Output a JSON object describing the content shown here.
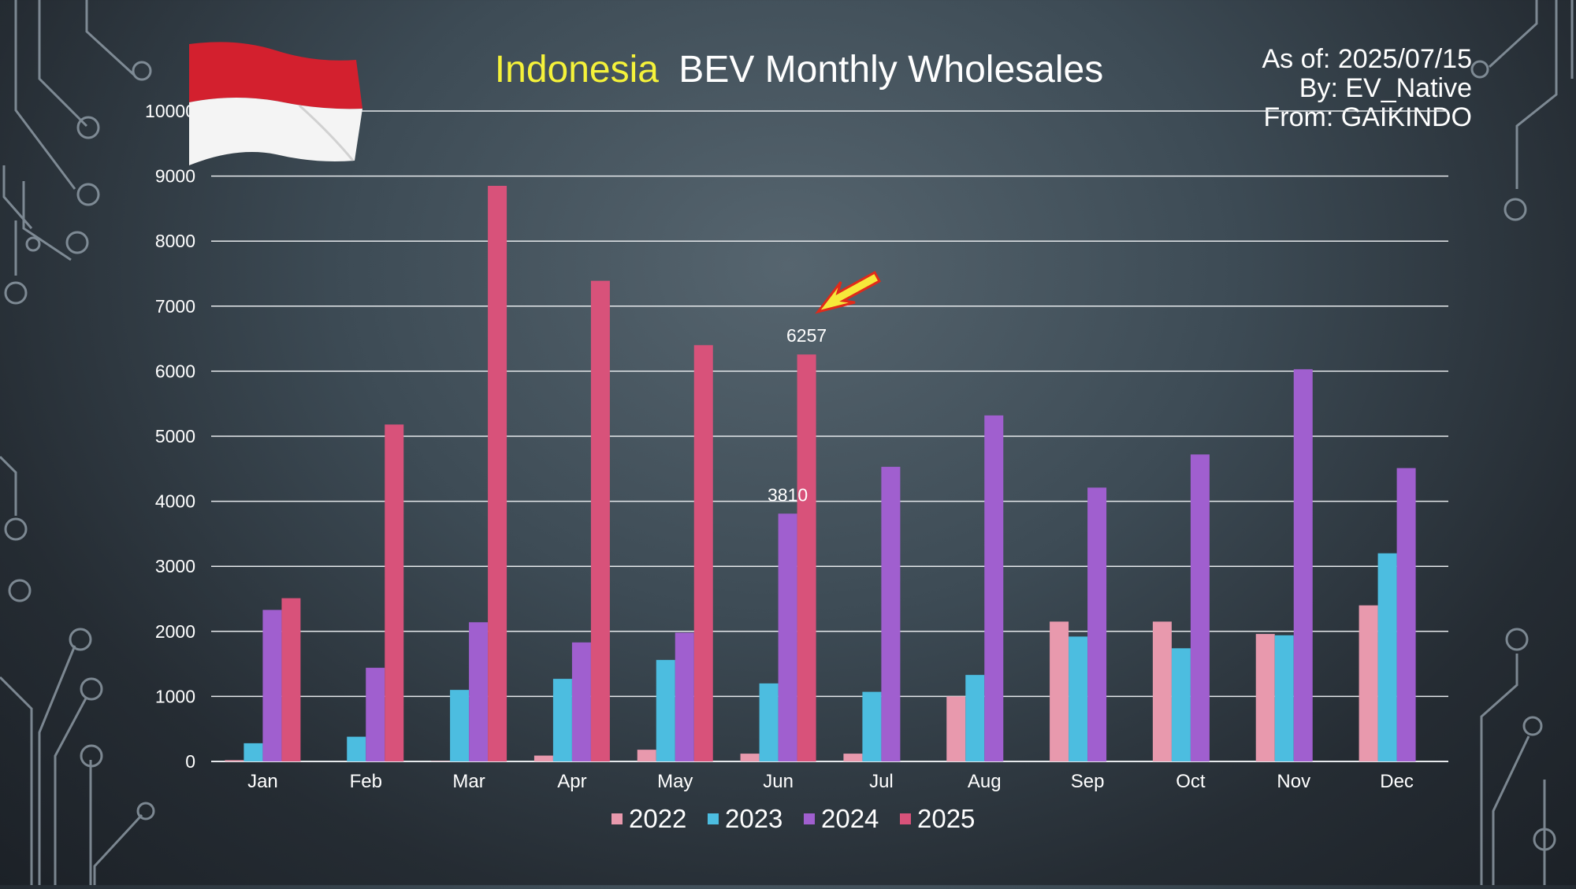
{
  "header": {
    "title_country": "Indonesia",
    "title_rest": "BEV Monthly Wholesales",
    "as_of": "As of: 2025/07/15",
    "by": "By: EV_Native",
    "from": "From: GAIKINDO"
  },
  "colors": {
    "accent_title": "#f5f23a",
    "2022": "#e899ad",
    "2023": "#4cbde0",
    "2024": "#a05fcf",
    "2025": "#d8527a",
    "arrow_fill": "#f6e93a",
    "arrow_stroke": "#e02a1a",
    "flag_red": "#d3202e",
    "flag_white": "#f4f4f4"
  },
  "chart_data": {
    "type": "bar",
    "title": "Indonesia BEV Monthly Wholesales",
    "xlabel": "",
    "ylabel": "",
    "ylim": [
      0,
      10000
    ],
    "yticks": [
      0,
      1000,
      2000,
      3000,
      4000,
      5000,
      6000,
      7000,
      8000,
      9000,
      10000
    ],
    "grid": true,
    "legend_position": "bottom",
    "categories": [
      "Jan",
      "Feb",
      "Mar",
      "Apr",
      "May",
      "Jun",
      "Jul",
      "Aug",
      "Sep",
      "Oct",
      "Nov",
      "Dec"
    ],
    "series": [
      {
        "name": "2022",
        "values": [
          20,
          0,
          5,
          90,
          180,
          120,
          120,
          1000,
          2150,
          2150,
          1960,
          2400
        ]
      },
      {
        "name": "2023",
        "values": [
          280,
          380,
          1100,
          1270,
          1560,
          1200,
          1070,
          1330,
          1920,
          1740,
          1940,
          3200
        ]
      },
      {
        "name": "2024",
        "values": [
          2330,
          1440,
          2140,
          1830,
          1980,
          3810,
          4530,
          5320,
          4210,
          4720,
          6030,
          4510
        ]
      },
      {
        "name": "2025",
        "values": [
          2510,
          5180,
          8850,
          7390,
          6400,
          6257,
          null,
          null,
          null,
          null,
          null,
          null
        ]
      }
    ],
    "annotations": [
      {
        "category": "Jun",
        "series": "2024",
        "text": "3810"
      },
      {
        "category": "Jun",
        "series": "2025",
        "text": "6257"
      }
    ]
  }
}
